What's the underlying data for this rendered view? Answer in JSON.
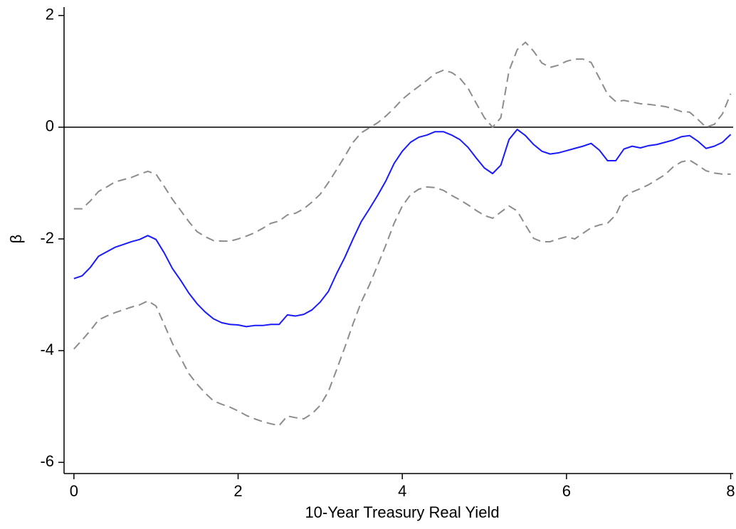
{
  "chart_data": {
    "type": "line",
    "x_label": "10-Year Treasury Real Yield",
    "y_label": "β",
    "x": [
      0,
      0.1,
      0.2,
      0.3,
      0.4,
      0.5,
      0.6,
      0.7,
      0.8,
      0.9,
      1,
      1.1,
      1.2,
      1.3,
      1.4,
      1.5,
      1.6,
      1.7,
      1.8,
      1.9,
      2,
      2.1,
      2.2,
      2.3,
      2.4,
      2.5,
      2.6,
      2.7,
      2.8,
      2.9,
      3,
      3.1,
      3.2,
      3.3,
      3.4,
      3.5,
      3.6,
      3.7,
      3.8,
      3.9,
      4,
      4.1,
      4.2,
      4.3,
      4.4,
      4.5,
      4.6,
      4.7,
      4.8,
      4.9,
      5,
      5.1,
      5.2,
      5.3,
      5.4,
      5.5,
      5.6,
      5.7,
      5.8,
      5.9,
      6,
      6.1,
      6.2,
      6.3,
      6.4,
      6.5,
      6.6,
      6.7,
      6.8,
      6.9,
      7,
      7.1,
      7.2,
      7.3,
      7.4,
      7.5,
      7.6,
      7.7,
      7.8,
      7.9,
      8
    ],
    "series": [
      {
        "color": "#1a1aff",
        "dashed": false,
        "values": [
          -2.71,
          -2.66,
          -2.51,
          -2.31,
          -2.23,
          -2.15,
          -2.1,
          -2.05,
          -2.01,
          -1.94,
          -2.01,
          -2.25,
          -2.53,
          -2.74,
          -2.97,
          -3.16,
          -3.31,
          -3.43,
          -3.5,
          -3.53,
          -3.54,
          -3.57,
          -3.55,
          -3.55,
          -3.53,
          -3.53,
          -3.36,
          -3.38,
          -3.35,
          -3.27,
          -3.13,
          -2.94,
          -2.62,
          -2.33,
          -2.0,
          -1.69,
          -1.46,
          -1.22,
          -0.96,
          -0.65,
          -0.43,
          -0.27,
          -0.18,
          -0.14,
          -0.08,
          -0.08,
          -0.14,
          -0.22,
          -0.36,
          -0.55,
          -0.73,
          -0.83,
          -0.68,
          -0.22,
          -0.04,
          -0.15,
          -0.31,
          -0.43,
          -0.48,
          -0.46,
          -0.42,
          -0.38,
          -0.34,
          -0.29,
          -0.41,
          -0.6,
          -0.6,
          -0.39,
          -0.34,
          -0.37,
          -0.33,
          -0.31,
          -0.27,
          -0.23,
          -0.17,
          -0.15,
          -0.25,
          -0.38,
          -0.34,
          -0.27,
          -0.13
        ]
      },
      {
        "color": "#8c8c8c",
        "dashed": true,
        "values": [
          -1.46,
          -1.46,
          -1.32,
          -1.15,
          -1.07,
          -0.98,
          -0.94,
          -0.9,
          -0.84,
          -0.79,
          -0.84,
          -1.06,
          -1.29,
          -1.49,
          -1.69,
          -1.87,
          -1.96,
          -2.03,
          -2.04,
          -2.04,
          -2.0,
          -1.95,
          -1.89,
          -1.81,
          -1.72,
          -1.68,
          -1.57,
          -1.54,
          -1.46,
          -1.34,
          -1.2,
          -0.99,
          -0.76,
          -0.52,
          -0.27,
          -0.1,
          -0.01,
          0.08,
          0.2,
          0.34,
          0.5,
          0.62,
          0.73,
          0.84,
          0.96,
          1.02,
          0.98,
          0.88,
          0.7,
          0.43,
          0.17,
          0.0,
          0.17,
          1.01,
          1.39,
          1.52,
          1.36,
          1.15,
          1.07,
          1.11,
          1.18,
          1.22,
          1.22,
          1.16,
          0.88,
          0.59,
          0.46,
          0.48,
          0.45,
          0.42,
          0.41,
          0.39,
          0.37,
          0.33,
          0.28,
          0.27,
          0.14,
          0.0,
          0.05,
          0.24,
          0.6
        ]
      },
      {
        "color": "#8c8c8c",
        "dashed": true,
        "values": [
          -3.97,
          -3.81,
          -3.64,
          -3.45,
          -3.38,
          -3.32,
          -3.27,
          -3.22,
          -3.18,
          -3.11,
          -3.2,
          -3.53,
          -3.87,
          -4.13,
          -4.41,
          -4.6,
          -4.76,
          -4.9,
          -4.96,
          -5.01,
          -5.08,
          -5.16,
          -5.22,
          -5.27,
          -5.31,
          -5.34,
          -5.17,
          -5.2,
          -5.22,
          -5.13,
          -4.98,
          -4.73,
          -4.34,
          -3.94,
          -3.52,
          -3.13,
          -2.82,
          -2.47,
          -2.11,
          -1.72,
          -1.41,
          -1.21,
          -1.11,
          -1.07,
          -1.08,
          -1.13,
          -1.22,
          -1.3,
          -1.39,
          -1.49,
          -1.58,
          -1.63,
          -1.52,
          -1.41,
          -1.5,
          -1.75,
          -1.99,
          -2.05,
          -2.05,
          -2.0,
          -1.96,
          -2.0,
          -1.9,
          -1.8,
          -1.75,
          -1.72,
          -1.57,
          -1.26,
          -1.16,
          -1.1,
          -1.03,
          -0.94,
          -0.85,
          -0.71,
          -0.62,
          -0.59,
          -0.68,
          -0.78,
          -0.82,
          -0.84,
          -0.84
        ]
      }
    ],
    "reference_line": 0,
    "xlim": [
      -0.12,
      8.03
    ],
    "ylim": [
      -6.2,
      2.15
    ],
    "xticks": [
      0,
      2,
      4,
      6,
      8
    ],
    "yticks": [
      -6,
      -4,
      -2,
      0,
      2
    ],
    "grid": false
  }
}
